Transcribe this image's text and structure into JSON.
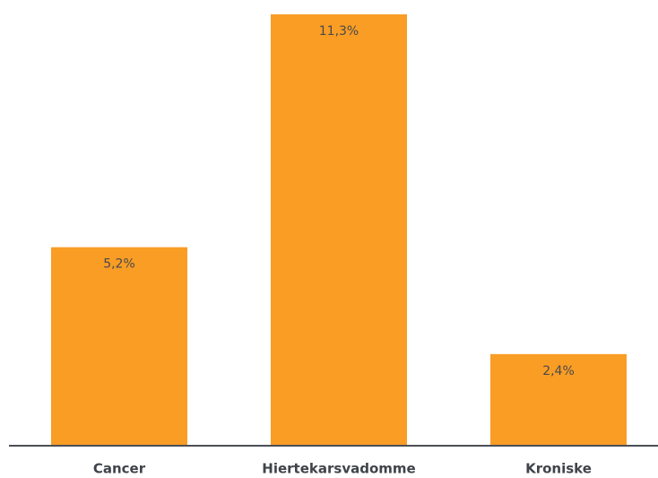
{
  "chart_data": {
    "type": "bar",
    "categories": [
      "Cancer",
      "Hiertekarsvadomme",
      "Kroniske"
    ],
    "values": [
      5.2,
      11.3,
      2.4
    ],
    "value_labels": [
      "5,2%",
      "11,3%",
      "2,4%"
    ],
    "color": "#f99d25"
  }
}
